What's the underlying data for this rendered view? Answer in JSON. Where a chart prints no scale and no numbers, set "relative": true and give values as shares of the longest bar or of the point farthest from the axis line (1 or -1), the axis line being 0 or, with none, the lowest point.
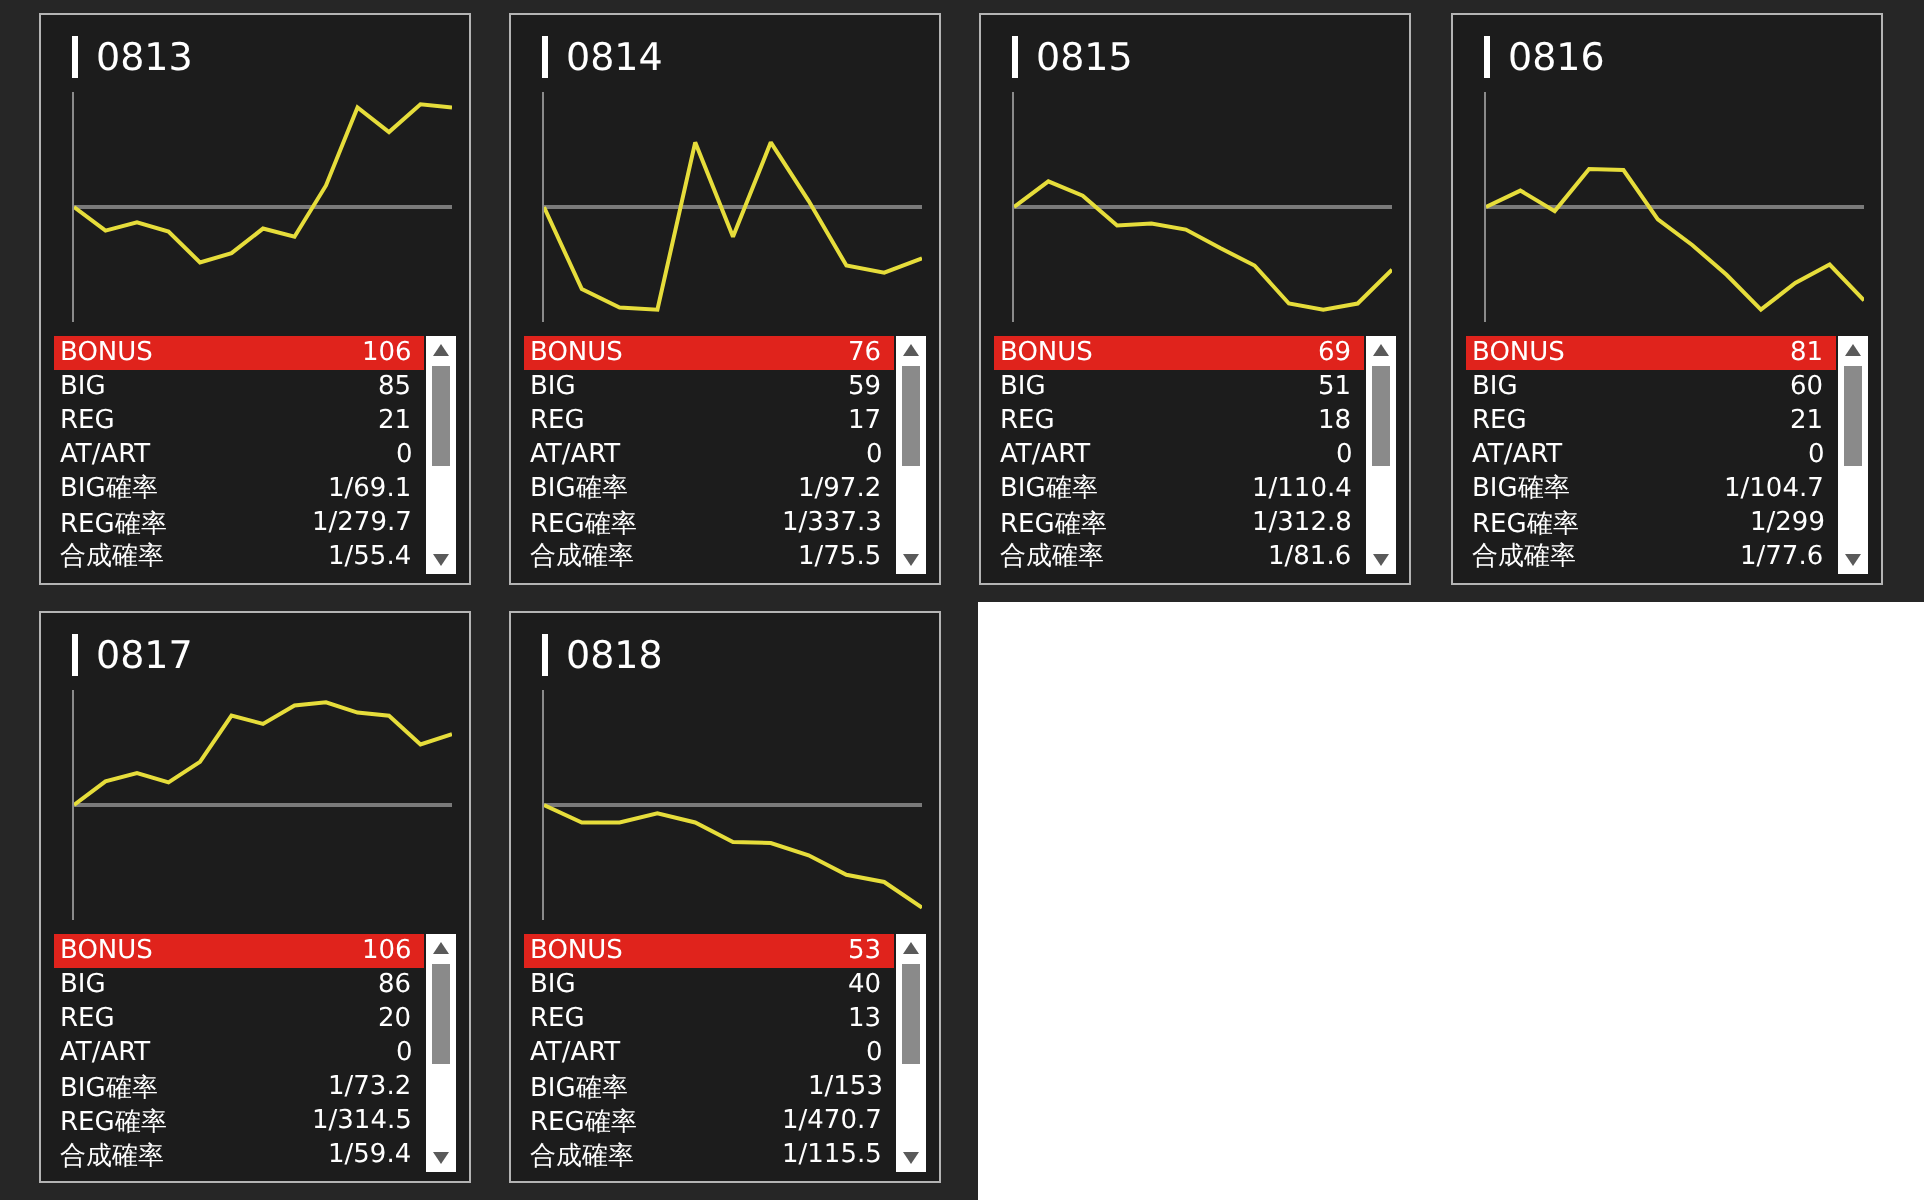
{
  "chart_data": [
    {
      "type": "line",
      "title": "0813",
      "relative": true,
      "color": "#e6dd3b",
      "categories": [
        null,
        null,
        null,
        null,
        null,
        null,
        null,
        null,
        null,
        null,
        null,
        null,
        null
      ],
      "values": [
        0,
        -0.23,
        -0.15,
        -0.24,
        -0.54,
        -0.45,
        -0.21,
        -0.29,
        0.21,
        0.97,
        0.73,
        1,
        0.97
      ],
      "annotations": [
        "BONUS",
        "106",
        "BIG",
        "85",
        "REG",
        "21",
        "AT/ART",
        "0",
        "BIG確率",
        "1/69.1",
        "REG確率",
        "1/279.7",
        "合成確率",
        "1/55.4"
      ]
    },
    {
      "type": "line",
      "title": "0814",
      "relative": true,
      "color": "#e6dd3b",
      "categories": [
        null,
        null,
        null,
        null,
        null,
        null,
        null,
        null,
        null,
        null,
        null
      ],
      "values": [
        0,
        -0.8,
        -0.98,
        -1,
        0.63,
        -0.29,
        0.63,
        0.06,
        -0.57,
        -0.64,
        -0.5
      ],
      "annotations": [
        "BONUS",
        "76",
        "BIG",
        "59",
        "REG",
        "17",
        "AT/ART",
        "0",
        "BIG確率",
        "1/97.2",
        "REG確率",
        "1/337.3",
        "合成確率",
        "1/75.5"
      ]
    },
    {
      "type": "line",
      "title": "0815",
      "relative": true,
      "color": "#e6dd3b",
      "categories": [
        null,
        null,
        null,
        null,
        null,
        null,
        null,
        null,
        null,
        null,
        null,
        null
      ],
      "values": [
        0,
        0.25,
        0.11,
        -0.18,
        -0.16,
        -0.22,
        -0.4,
        -0.57,
        -0.94,
        -1,
        -0.94,
        -0.61
      ],
      "annotations": [
        "BONUS",
        "69",
        "BIG",
        "51",
        "REG",
        "18",
        "AT/ART",
        "0",
        "BIG確率",
        "1/110.4",
        "REG確率",
        "1/312.8",
        "合成確率",
        "1/81.6"
      ]
    },
    {
      "type": "line",
      "title": "0816",
      "relative": true,
      "color": "#e6dd3b",
      "categories": [
        null,
        null,
        null,
        null,
        null,
        null,
        null,
        null,
        null,
        null,
        null,
        null
      ],
      "values": [
        0,
        0.16,
        -0.04,
        0.37,
        0.36,
        -0.12,
        -0.37,
        -0.66,
        -1,
        -0.74,
        -0.56,
        -0.91
      ],
      "annotations": [
        "BONUS",
        "81",
        "BIG",
        "60",
        "REG",
        "21",
        "AT/ART",
        "0",
        "BIG確率",
        "1/104.7",
        "REG確率",
        "1/299",
        "合成確率",
        "1/77.6"
      ]
    },
    {
      "type": "line",
      "title": "0817",
      "relative": true,
      "color": "#e6dd3b",
      "categories": [
        null,
        null,
        null,
        null,
        null,
        null,
        null,
        null,
        null,
        null,
        null,
        null,
        null
      ],
      "values": [
        0,
        0.23,
        0.31,
        0.22,
        0.42,
        0.87,
        0.79,
        0.97,
        1,
        0.9,
        0.87,
        0.59,
        0.69
      ],
      "annotations": [
        "BONUS",
        "106",
        "BIG",
        "86",
        "REG",
        "20",
        "AT/ART",
        "0",
        "BIG確率",
        "1/73.2",
        "REG確率",
        "1/314.5",
        "合成確率",
        "1/59.4"
      ]
    },
    {
      "type": "line",
      "title": "0818",
      "relative": true,
      "color": "#e6dd3b",
      "categories": [
        null,
        null,
        null,
        null,
        null,
        null,
        null,
        null,
        null,
        null,
        null
      ],
      "values": [
        0,
        -0.17,
        -0.17,
        -0.08,
        -0.17,
        -0.36,
        -0.37,
        -0.49,
        -0.68,
        -0.75,
        -1
      ],
      "annotations": [
        "BONUS",
        "53",
        "BIG",
        "40",
        "REG",
        "13",
        "AT/ART",
        "0",
        "BIG確率",
        "1/153",
        "REG確率",
        "1/470.7",
        "合成確率",
        "1/115.5"
      ]
    }
  ]
}
